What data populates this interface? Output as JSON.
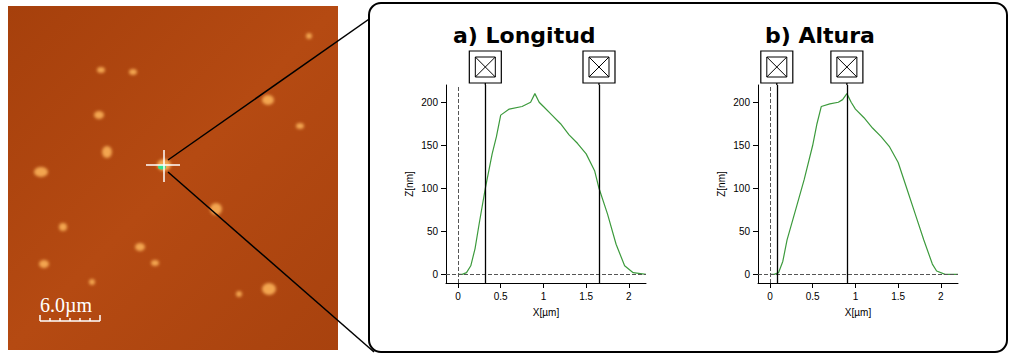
{
  "image": {
    "scale_bar": "6.0µm"
  },
  "chart_data": [
    {
      "type": "line",
      "title": "a) Longitud",
      "x_label": "X[µm]",
      "y_label": "Z[nm]",
      "x": [
        0,
        0.05,
        0.1,
        0.15,
        0.2,
        0.25,
        0.32,
        0.4,
        0.45,
        0.5,
        0.6,
        0.75,
        0.85,
        0.9,
        0.95,
        1.0,
        1.1,
        1.2,
        1.3,
        1.4,
        1.5,
        1.6,
        1.65,
        1.75,
        1.85,
        1.95,
        2.05,
        2.2
      ],
      "values": [
        0,
        0,
        2,
        10,
        30,
        60,
        100,
        140,
        160,
        185,
        192,
        195,
        200,
        210,
        200,
        195,
        185,
        175,
        162,
        152,
        140,
        120,
        100,
        70,
        35,
        10,
        2,
        0
      ],
      "color": "#3c9a3c",
      "xlim": [
        -0.14,
        2.2
      ],
      "ylim": [
        -10,
        220
      ],
      "xticks": [
        0,
        0.5,
        1,
        1.5,
        2
      ],
      "yticks": [
        0,
        50,
        100,
        150,
        200
      ],
      "cursors": [
        0.32,
        1.65
      ],
      "reference_lines": {
        "x": 0,
        "y": 0
      },
      "grid": false
    },
    {
      "type": "line",
      "title": "b) Altura",
      "x_label": "X[µm]",
      "y_label": "Z[nm]",
      "x": [
        0,
        0.05,
        0.1,
        0.15,
        0.2,
        0.3,
        0.4,
        0.5,
        0.55,
        0.6,
        0.7,
        0.8,
        0.85,
        0.9,
        0.95,
        1.0,
        1.1,
        1.2,
        1.3,
        1.4,
        1.5,
        1.6,
        1.7,
        1.8,
        1.9,
        1.95,
        2.05,
        2.2
      ],
      "values": [
        0,
        0,
        2,
        15,
        40,
        75,
        110,
        150,
        175,
        195,
        198,
        200,
        203,
        210,
        200,
        192,
        182,
        170,
        160,
        148,
        130,
        100,
        70,
        40,
        12,
        4,
        0,
        0
      ],
      "color": "#3c9a3c",
      "xlim": [
        -0.14,
        2.2
      ],
      "ylim": [
        -10,
        220
      ],
      "xticks": [
        0,
        0.5,
        1,
        1.5,
        2
      ],
      "yticks": [
        0,
        50,
        100,
        150,
        200
      ],
      "cursors": [
        0.08,
        0.9
      ],
      "reference_lines": {
        "x": 0,
        "y": 0
      },
      "grid": false
    }
  ]
}
